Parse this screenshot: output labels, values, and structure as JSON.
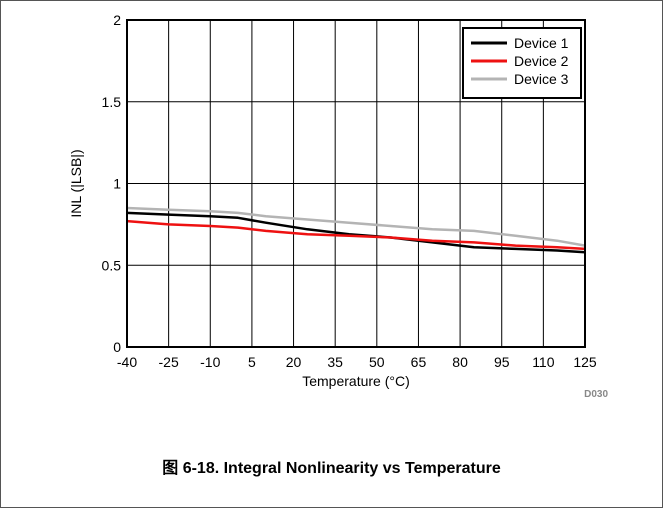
{
  "figure": {
    "code": "D030",
    "caption": "图 6-18. Integral Nonlinearity vs Temperature"
  },
  "chart_data": {
    "type": "line",
    "title": "",
    "xlabel": "Temperature (°C)",
    "ylabel": "INL (|LSB|)",
    "xlim": [
      -40,
      125
    ],
    "ylim": [
      0,
      2
    ],
    "x_ticks": [
      -40,
      -25,
      -10,
      5,
      20,
      35,
      50,
      65,
      80,
      95,
      110,
      125
    ],
    "y_ticks": [
      0,
      0.5,
      1,
      1.5,
      2
    ],
    "y_tick_labels": [
      "0",
      "0.5",
      "1",
      "1.5",
      "2"
    ],
    "grid": true,
    "legend_position": "top-right",
    "series": [
      {
        "name": "Device 1",
        "color": "#000000",
        "x": [
          -40,
          -25,
          -10,
          0,
          10,
          25,
          40,
          55,
          70,
          85,
          100,
          115,
          125
        ],
        "y": [
          0.82,
          0.81,
          0.8,
          0.79,
          0.76,
          0.72,
          0.69,
          0.67,
          0.64,
          0.61,
          0.6,
          0.59,
          0.58
        ]
      },
      {
        "name": "Device 2",
        "color": "#ee1111",
        "x": [
          -40,
          -25,
          -10,
          0,
          10,
          25,
          40,
          55,
          70,
          85,
          100,
          115,
          125
        ],
        "y": [
          0.77,
          0.75,
          0.74,
          0.73,
          0.71,
          0.69,
          0.68,
          0.67,
          0.65,
          0.64,
          0.62,
          0.61,
          0.6
        ]
      },
      {
        "name": "Device 3",
        "color": "#b4b4b4",
        "x": [
          -40,
          -25,
          -10,
          0,
          10,
          25,
          40,
          55,
          70,
          85,
          100,
          115,
          125
        ],
        "y": [
          0.85,
          0.84,
          0.83,
          0.82,
          0.8,
          0.78,
          0.76,
          0.74,
          0.72,
          0.71,
          0.68,
          0.65,
          0.62
        ]
      }
    ]
  }
}
